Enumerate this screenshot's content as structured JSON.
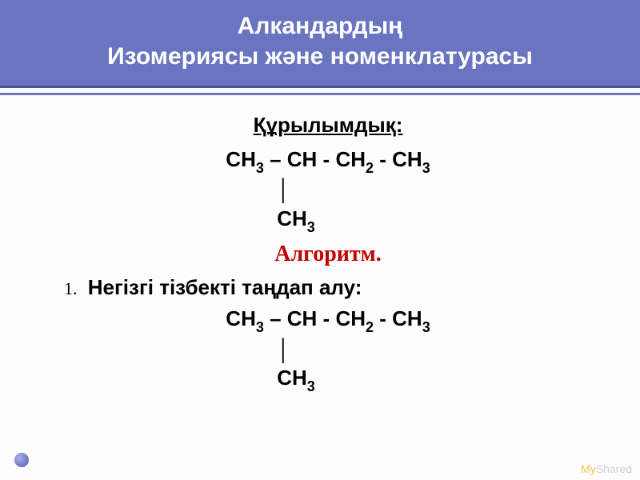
{
  "header": {
    "line1": "Алкандардың",
    "line2": "Изомериясы және номенклатурасы"
  },
  "section_heading": "Құрылымдық:",
  "formula1": {
    "chain": "СН₃ – СН - СН₂ - СН₃",
    "pipe": "│",
    "branch": "СН₃",
    "chain_parts": [
      "СН",
      "3",
      " – СН - СН",
      "2",
      " - СН",
      "3"
    ],
    "branch_parts": [
      "СН",
      "3"
    ]
  },
  "algorithm_label": "Алгоритм.",
  "step1": {
    "number": "1.",
    "text": "Негізгі тізбекті таңдап алу:"
  },
  "formula2": {
    "chain_parts": [
      "СН",
      "3",
      " – СН - СН",
      "2",
      " - СН",
      "3"
    ],
    "pipe": "│",
    "branch_parts": [
      "СН",
      "3"
    ]
  },
  "watermark": {
    "prefix": "My",
    "suffix": "Shared"
  },
  "colors": {
    "header_bg": "#6a74c0",
    "header_text": "#ffffff",
    "body_text": "#000000",
    "algorithm_text": "#c00000",
    "watermark_gray": "#cfcfcf",
    "watermark_accent": "#f5c24a",
    "background": "#fdfdfd"
  },
  "typography": {
    "title_fontsize": 30,
    "body_fontsize": 26,
    "sub_fontsize": 18,
    "algo_fontsize": 28
  }
}
